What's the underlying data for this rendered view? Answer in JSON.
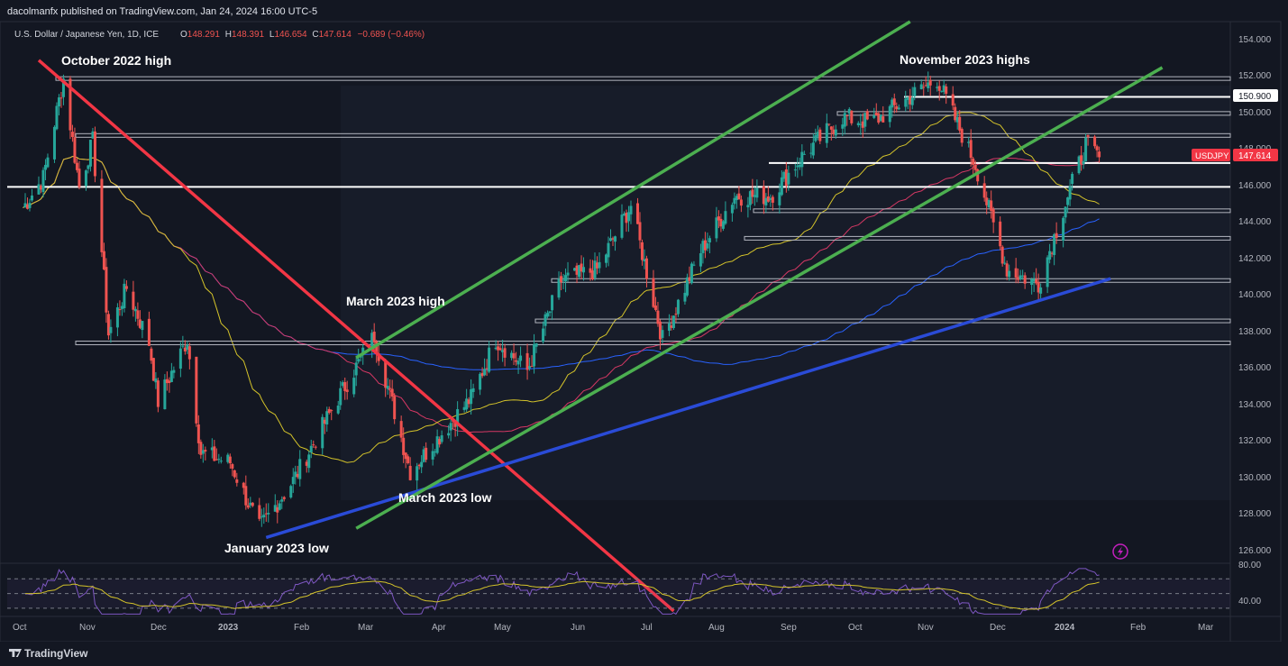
{
  "header": {
    "published": "dacolmanfx published on TradingView.com, Jan 24, 2024 16:00 UTC-5"
  },
  "legend": {
    "symbol_desc": "U.S. Dollar / Japanese Yen, 1D, ICE",
    "open_label": "O",
    "open": "148.291",
    "high_label": "H",
    "high": "148.391",
    "low_label": "L",
    "low": "146.654",
    "close_label": "C",
    "close": "147.614",
    "change": "−0.689 (−0.46%)"
  },
  "price_axis": {
    "ticks": [
      "154.000",
      "152.000",
      "150.000",
      "148.000",
      "146.000",
      "144.000",
      "142.000",
      "140.000",
      "138.000",
      "136.000",
      "134.000",
      "132.000",
      "130.000",
      "128.000",
      "126.000"
    ],
    "label_150900": "150.900",
    "symbol_badge": "USDJPY",
    "last_price": "147.614"
  },
  "rsi_axis": {
    "ticks": [
      "80.00",
      "40.00"
    ]
  },
  "time_axis": {
    "labels": [
      "Oct",
      "Nov",
      "Dec",
      "2023",
      "Feb",
      "Mar",
      "Apr",
      "May",
      "Jun",
      "Jul",
      "Aug",
      "Sep",
      "Oct",
      "Nov",
      "Dec",
      "2024",
      "Feb",
      "Mar"
    ]
  },
  "annotations": {
    "oct2022_high": "October 2022 high",
    "nov2023_highs": "November 2023 highs",
    "mar2023_high": "March 2023 high",
    "mar2023_low": "March 2023 low",
    "jan2023_low": "January 2023 low"
  },
  "footer": {
    "brand": "TradingView"
  },
  "colors": {
    "background": "#131722",
    "up": "#26a69a",
    "down": "#ef5350",
    "channel": "#4caf50",
    "downtrend": "#f23645",
    "uptrend": "#2a4bd7",
    "sma50": "#d4c32a",
    "sma100": "#d63864",
    "sma200": "#2962ff",
    "rsi": "#7e57c2"
  },
  "chart_data": {
    "type": "candlestick",
    "symbol": "USDJPY",
    "timeframe": "1D",
    "y_range": [
      125.5,
      155.0
    ],
    "last_price": 147.614,
    "key_levels": [
      151.9,
      150.9,
      150.0,
      148.8,
      147.3,
      146.0,
      144.7,
      143.2,
      140.9,
      138.7,
      137.5
    ],
    "price_path": [
      [
        "2022-10-01",
        144.5
      ],
      [
        "2022-10-12",
        146.5
      ],
      [
        "2022-10-21",
        151.9
      ],
      [
        "2022-10-28",
        146.0
      ],
      [
        "2022-11-03",
        148.5
      ],
      [
        "2022-11-10",
        138.0
      ],
      [
        "2022-11-18",
        140.5
      ],
      [
        "2022-11-28",
        137.5
      ],
      [
        "2022-12-02",
        134.3
      ],
      [
        "2022-12-15",
        137.7
      ],
      [
        "2022-12-21",
        131.5
      ],
      [
        "2023-01-03",
        131.0
      ],
      [
        "2023-01-16",
        127.4
      ],
      [
        "2023-01-31",
        130.0
      ],
      [
        "2023-02-20",
        134.5
      ],
      [
        "2023-03-08",
        137.9
      ],
      [
        "2023-03-24",
        130.5
      ],
      [
        "2023-04-20",
        134.5
      ],
      [
        "2023-05-01",
        137.7
      ],
      [
        "2023-05-15",
        136.0
      ],
      [
        "2023-05-30",
        140.9
      ],
      [
        "2023-06-15",
        141.5
      ],
      [
        "2023-06-30",
        145.0
      ],
      [
        "2023-07-14",
        137.7
      ],
      [
        "2023-07-31",
        142.5
      ],
      [
        "2023-08-15",
        145.5
      ],
      [
        "2023-08-31",
        145.5
      ],
      [
        "2023-09-15",
        147.8
      ],
      [
        "2023-10-02",
        149.8
      ],
      [
        "2023-10-15",
        149.5
      ],
      [
        "2023-11-13",
        151.9
      ],
      [
        "2023-11-30",
        147.2
      ],
      [
        "2023-12-14",
        141.5
      ],
      [
        "2023-12-28",
        140.7
      ],
      [
        "2024-01-10",
        145.5
      ],
      [
        "2024-01-18",
        148.3
      ],
      [
        "2024-01-24",
        147.6
      ]
    ],
    "moving_averages": [
      {
        "name": "SMA50",
        "color": "#d4c32a"
      },
      {
        "name": "SMA100",
        "color": "#d63864"
      },
      {
        "name": "SMA200",
        "color": "#2962ff"
      }
    ],
    "rsi": {
      "levels": [
        70,
        50,
        30
      ],
      "axis_ticks": [
        80,
        40
      ],
      "y_range": [
        20,
        90
      ]
    }
  }
}
